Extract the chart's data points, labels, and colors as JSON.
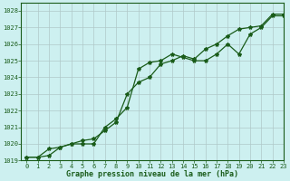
{
  "title": "Graphe pression niveau de la mer (hPa)",
  "background_color": "#cdf0f0",
  "grid_color": "#b0c8c8",
  "line_color": "#1a5c1a",
  "xlim": [
    -0.5,
    23
  ],
  "ylim": [
    1019,
    1028.5
  ],
  "xticks": [
    0,
    1,
    2,
    3,
    4,
    5,
    6,
    7,
    8,
    9,
    10,
    11,
    12,
    13,
    14,
    15,
    16,
    17,
    18,
    19,
    20,
    21,
    22,
    23
  ],
  "yticks": [
    1019,
    1020,
    1021,
    1022,
    1023,
    1024,
    1025,
    1026,
    1027,
    1028
  ],
  "series1_x": [
    0,
    1,
    2,
    3,
    4,
    5,
    6,
    7,
    8,
    9,
    10,
    11,
    12,
    13,
    14,
    15,
    16,
    17,
    18,
    19,
    20,
    21,
    22,
    23
  ],
  "series1_y": [
    1019.2,
    1019.2,
    1019.7,
    1019.8,
    1020.0,
    1020.0,
    1020.0,
    1021.0,
    1021.5,
    1022.2,
    1024.5,
    1024.9,
    1025.0,
    1025.4,
    1025.2,
    1025.0,
    1025.0,
    1025.4,
    1026.0,
    1025.4,
    1026.6,
    1027.0,
    1027.7,
    1027.7
  ],
  "series2_x": [
    0,
    1,
    2,
    3,
    4,
    5,
    6,
    7,
    8,
    9,
    10,
    11,
    12,
    13,
    14,
    15,
    16,
    17,
    18,
    19,
    20,
    21,
    22,
    23
  ],
  "series2_y": [
    1019.2,
    1019.2,
    1019.3,
    1019.8,
    1020.0,
    1020.2,
    1020.3,
    1020.8,
    1021.3,
    1023.0,
    1023.7,
    1024.0,
    1024.8,
    1025.0,
    1025.3,
    1025.1,
    1025.7,
    1026.0,
    1026.5,
    1026.9,
    1027.0,
    1027.1,
    1027.8,
    1027.8
  ]
}
